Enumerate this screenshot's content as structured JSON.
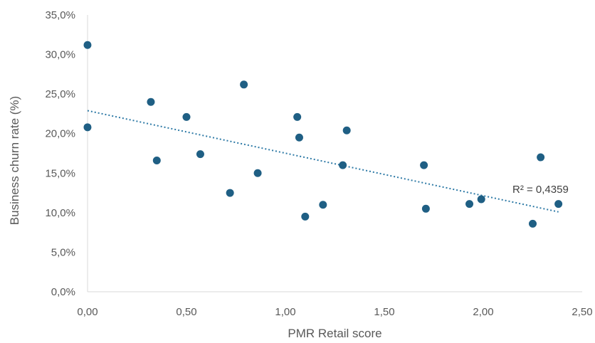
{
  "chart_data": {
    "type": "scatter",
    "title": "",
    "xlabel": "PMR Retail score",
    "ylabel": "Business churn rate (%)",
    "xlim": [
      0,
      2.5
    ],
    "ylim": [
      0,
      0.35
    ],
    "x_ticks": [
      0,
      0.5,
      1.0,
      1.5,
      2.0,
      2.5
    ],
    "x_tick_labels": [
      "0,00",
      "0,50",
      "1,00",
      "1,50",
      "2,00",
      "2,50"
    ],
    "y_ticks": [
      0,
      0.05,
      0.1,
      0.15,
      0.2,
      0.25,
      0.3,
      0.35
    ],
    "y_tick_labels": [
      "0,0%",
      "5,0%",
      "10,0%",
      "15,0%",
      "20,0%",
      "25,0%",
      "30,0%",
      "35,0%"
    ],
    "grid": false,
    "legend": "none",
    "series": [
      {
        "points": [
          [
            0.0,
            0.312
          ],
          [
            0.0,
            0.208
          ],
          [
            0.32,
            0.24
          ],
          [
            0.35,
            0.166
          ],
          [
            0.5,
            0.221
          ],
          [
            0.57,
            0.174
          ],
          [
            0.72,
            0.125
          ],
          [
            0.79,
            0.262
          ],
          [
            0.86,
            0.15
          ],
          [
            1.06,
            0.221
          ],
          [
            1.07,
            0.195
          ],
          [
            1.1,
            0.095
          ],
          [
            1.19,
            0.11
          ],
          [
            1.29,
            0.16
          ],
          [
            1.31,
            0.204
          ],
          [
            1.7,
            0.16
          ],
          [
            1.71,
            0.105
          ],
          [
            1.93,
            0.111
          ],
          [
            1.99,
            0.117
          ],
          [
            2.25,
            0.086
          ],
          [
            2.29,
            0.17
          ],
          [
            2.38,
            0.111
          ]
        ],
        "color": "#1f5f84"
      }
    ],
    "trendline": {
      "type": "linear",
      "x_range": [
        0,
        2.38
      ],
      "y_range": [
        0.229,
        0.101
      ],
      "color": "#2e7aa6",
      "style": "dotted",
      "r2_label": "R² = 0,4359"
    }
  }
}
